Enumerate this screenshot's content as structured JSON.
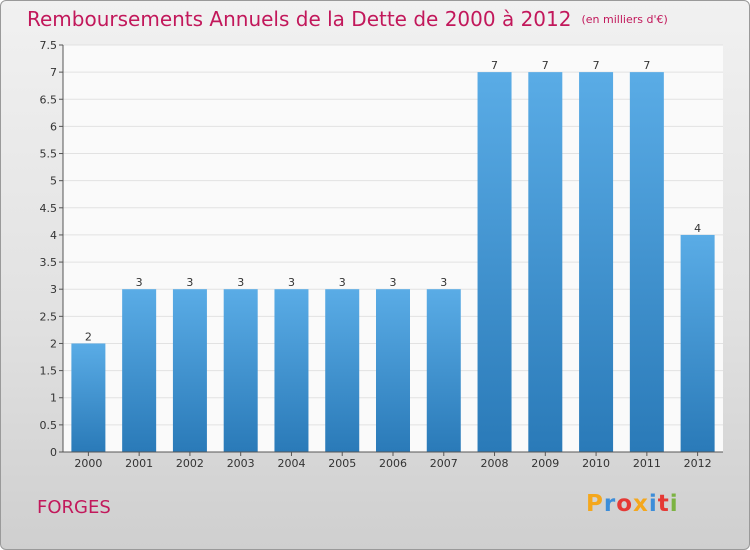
{
  "title": "Remboursements Annuels de la Dette de 2000 à 2012",
  "unit": "(en milliers d'€)",
  "commune": "FORGES",
  "logo": {
    "text": "Proxiti",
    "colors": [
      "#f4a71d",
      "#3c8dd9",
      "#e53935",
      "#f4a71d",
      "#3c8dd9",
      "#e53935",
      "#7cb342"
    ]
  },
  "colors": {
    "bar_top": "#5aace6",
    "bar_bottom": "#2a7ab8",
    "accent": "#c2185b"
  },
  "chart_data": {
    "type": "bar",
    "title": "Remboursements Annuels de la Dette de 2000 à 2012",
    "categories": [
      "2000",
      "2001",
      "2002",
      "2003",
      "2004",
      "2005",
      "2006",
      "2007",
      "2008",
      "2009",
      "2010",
      "2011",
      "2012"
    ],
    "values": [
      2,
      3,
      3,
      3,
      3,
      3,
      3,
      3,
      7,
      7,
      7,
      7,
      4
    ],
    "data_labels": [
      "2",
      "3",
      "3",
      "3",
      "3",
      "3",
      "3",
      "3",
      "7",
      "7",
      "7",
      "7",
      "4"
    ],
    "ylim": [
      0,
      7.5
    ],
    "yticks": [
      "0",
      "0.5",
      "1",
      "1.5",
      "2",
      "2.5",
      "3",
      "3.5",
      "4",
      "4.5",
      "5",
      "5.5",
      "6",
      "6.5",
      "7",
      "7.5"
    ],
    "grid": true
  }
}
